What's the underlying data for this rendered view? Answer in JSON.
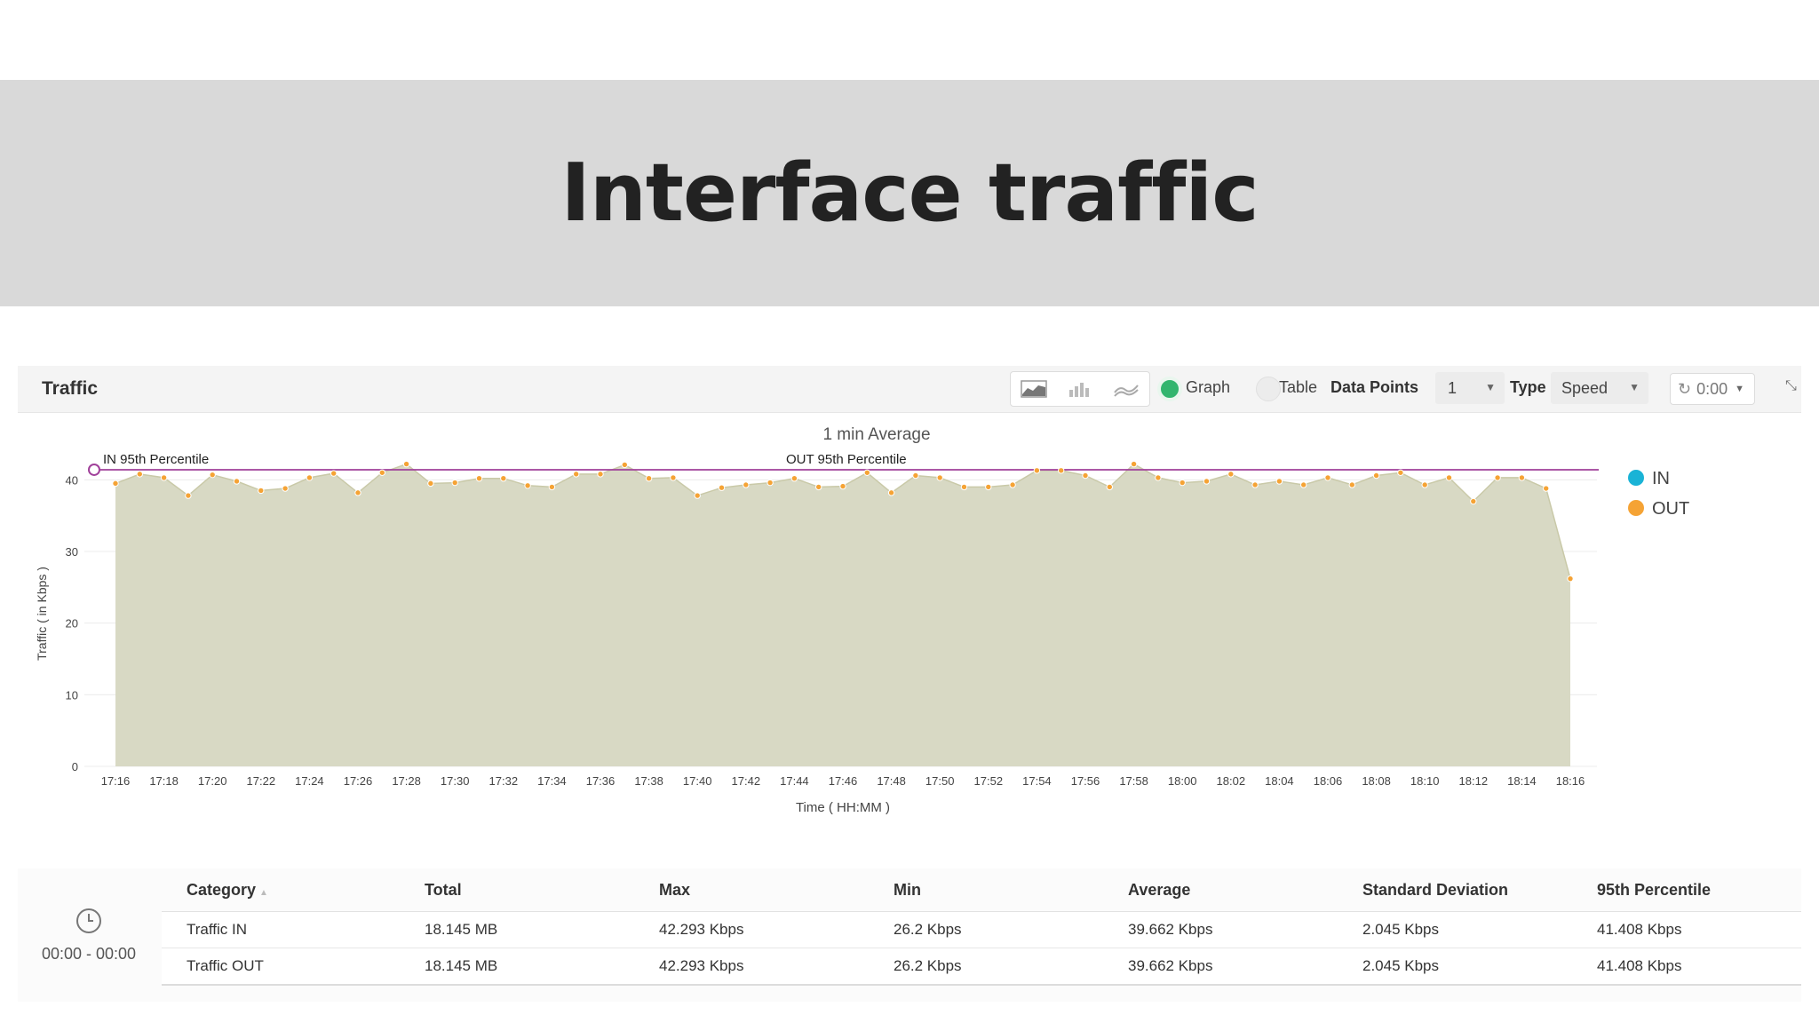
{
  "page": {
    "title": "Interface traffic"
  },
  "toolbar": {
    "panel_title": "Traffic",
    "view_icons": [
      "area-chart-icon",
      "bar-chart-icon",
      "line-chart-icon"
    ],
    "graph_label": "Graph",
    "table_label": "Table",
    "data_points_label": "Data Points",
    "data_points_value": "1",
    "type_label": "Type",
    "type_value": "Speed",
    "refresh_value": "0:00",
    "selected_view": "Graph"
  },
  "chart_data": {
    "type": "area",
    "title": "1 min Average",
    "xlabel": "Time ( HH:MM )",
    "ylabel": "Traffic ( in Kbps )",
    "ylim": [
      0,
      45
    ],
    "yticks": [
      0,
      10,
      20,
      30,
      40
    ],
    "xtick_labels": [
      "17:16",
      "17:18",
      "17:20",
      "17:22",
      "17:24",
      "17:26",
      "17:28",
      "17:30",
      "17:32",
      "17:34",
      "17:36",
      "17:38",
      "17:40",
      "17:42",
      "17:44",
      "17:46",
      "17:48",
      "17:50",
      "17:52",
      "17:54",
      "17:56",
      "17:58",
      "18:00",
      "18:02",
      "18:04",
      "18:06",
      "18:08",
      "18:10",
      "18:12",
      "18:14",
      "18:16"
    ],
    "legend": {
      "position": "right",
      "entries": [
        {
          "name": "IN",
          "color": "#1ab3d6"
        },
        {
          "name": "OUT",
          "color": "#f5a335"
        }
      ]
    },
    "series": [
      {
        "name": "OUT",
        "color": "#f5a335",
        "fill": "#d8d9c4",
        "x_start": "17:16",
        "x_step_minutes": 1,
        "values": [
          39.5,
          40.8,
          40.3,
          37.8,
          40.7,
          39.8,
          38.5,
          38.8,
          40.3,
          40.9,
          38.2,
          41.0,
          42.2,
          39.5,
          39.6,
          40.2,
          40.2,
          39.2,
          39.0,
          40.8,
          40.8,
          42.1,
          40.2,
          40.3,
          37.8,
          38.9,
          39.3,
          39.6,
          40.2,
          39.0,
          39.1,
          41.0,
          38.2,
          40.6,
          40.3,
          39.0,
          39.0,
          39.3,
          41.3,
          41.3,
          40.6,
          39.0,
          42.2,
          40.3,
          39.6,
          39.8,
          40.8,
          39.3,
          39.8,
          39.3,
          40.3,
          39.3,
          40.6,
          41.0,
          39.3,
          40.3,
          37.0,
          40.3,
          40.3,
          38.8,
          26.2
        ]
      }
    ],
    "reference_lines": [
      {
        "label": "IN 95th Percentile",
        "value": 41.408,
        "color": "#a0409a"
      },
      {
        "label": "OUT 95th Percentile",
        "value": 41.408,
        "color": "#a0409a"
      }
    ],
    "grid": true
  },
  "stats": {
    "time_range": "00:00 - 00:00",
    "headers": [
      "Category",
      "Total",
      "Max",
      "Min",
      "Average",
      "Standard Deviation",
      "95th Percentile"
    ],
    "rows": [
      [
        "Traffic IN",
        "18.145 MB",
        "42.293 Kbps",
        "26.2 Kbps",
        "39.662 Kbps",
        "2.045 Kbps",
        "41.408 Kbps"
      ],
      [
        "Traffic OUT",
        "18.145 MB",
        "42.293 Kbps",
        "26.2 Kbps",
        "39.662 Kbps",
        "2.045 Kbps",
        "41.408 Kbps"
      ]
    ]
  }
}
